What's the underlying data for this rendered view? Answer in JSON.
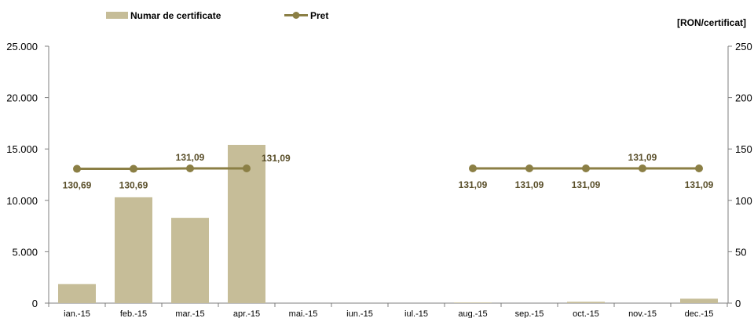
{
  "chart_data": {
    "type": "bar+line",
    "categories": [
      "ian.-15",
      "feb.-15",
      "mar.-15",
      "apr.-15",
      "mai.-15",
      "iun.-15",
      "iul.-15",
      "aug.-15",
      "sep.-15",
      "oct.-15",
      "nov.-15",
      "dec.-15"
    ],
    "series": [
      {
        "name": "Numar de certificate",
        "type": "bar",
        "axis": "left",
        "color": "#c6bd98",
        "values": [
          1850,
          10300,
          8300,
          15400,
          0,
          0,
          0,
          60,
          0,
          130,
          0,
          430
        ]
      },
      {
        "name": "Pret",
        "type": "line",
        "axis": "right",
        "color": "#8b7f45",
        "values": [
          130.69,
          130.69,
          131.09,
          131.09,
          null,
          null,
          null,
          131.09,
          131.09,
          131.09,
          131.09,
          131.09
        ],
        "labels": [
          "130,69",
          "130,69",
          "131,09",
          "131,09",
          "",
          "",
          "",
          "131,09",
          "131,09",
          "131,09",
          "131,09",
          "131,09"
        ],
        "label_positions": [
          "below",
          "below",
          "above",
          "right",
          "",
          "",
          "",
          "below",
          "below",
          "below",
          "above",
          "below"
        ]
      }
    ],
    "left_axis": {
      "min": 0,
      "max": 25000,
      "ticks": [
        0,
        5000,
        10000,
        15000,
        20000,
        25000
      ],
      "tick_labels": [
        "0",
        "5.000",
        "10.000",
        "15.000",
        "20.000",
        "25.000"
      ]
    },
    "right_axis": {
      "min": 0,
      "max": 250,
      "ticks": [
        0,
        50,
        100,
        150,
        200,
        250
      ],
      "tick_labels": [
        "0",
        "50",
        "100",
        "150",
        "200",
        "250"
      ],
      "unit_label": "[RON/certificat]"
    },
    "legend": {
      "placement": "top-left",
      "items": [
        {
          "label": "Numar de certificate",
          "kind": "bar",
          "color": "#c6bd98"
        },
        {
          "label": "Pret",
          "kind": "line",
          "color": "#8b7f45"
        }
      ]
    },
    "grid": false
  }
}
